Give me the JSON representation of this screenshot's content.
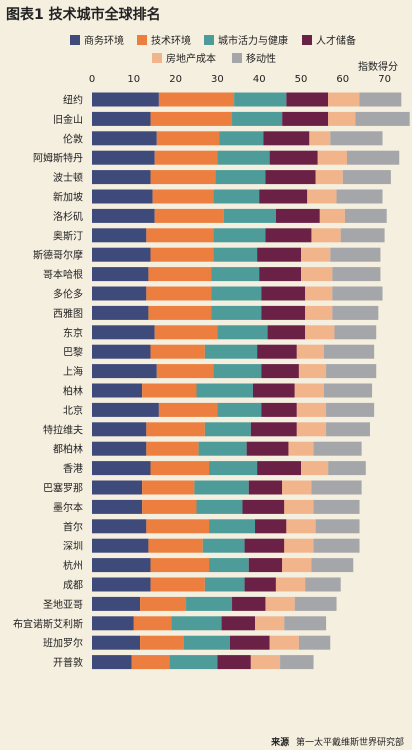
{
  "title_lead": "图表1",
  "title_text": "技术城市全球排名",
  "source_label": "来源",
  "source_text": "第一太平戴维斯世界研究部",
  "chart_data": {
    "type": "bar",
    "orientation": "horizontal",
    "stacked": true,
    "title": "图表1 技术城市全球排名",
    "xlabel": "指数得分",
    "xlim": [
      0,
      75
    ],
    "xticks": [
      0,
      10,
      20,
      30,
      40,
      50,
      60,
      70
    ],
    "legend_position": "top",
    "categories": [
      "纽约",
      "旧金山",
      "伦敦",
      "阿姆斯特丹",
      "波士顿",
      "新加坡",
      "洛杉矶",
      "奥斯汀",
      "斯德哥尔摩",
      "哥本哈根",
      "多伦多",
      "西雅图",
      "东京",
      "巴黎",
      "上海",
      "柏林",
      "北京",
      "特拉维夫",
      "都柏林",
      "香港",
      "巴塞罗那",
      "墨尔本",
      "首尔",
      "深圳",
      "杭州",
      "成都",
      "圣地亚哥",
      "布宜诺斯艾利斯",
      "班加罗尔",
      "开普敦"
    ],
    "series": [
      {
        "name": "商务环境",
        "color": "#3e4a7a",
        "values": [
          16,
          14,
          15.5,
          15,
          14,
          14.5,
          15,
          13,
          14,
          13.5,
          13,
          13.5,
          15,
          14,
          15.5,
          12,
          16,
          13,
          13,
          14,
          12,
          12,
          13,
          13.5,
          14,
          14,
          11.5,
          10,
          11.5,
          9.5
        ]
      },
      {
        "name": "技术环境",
        "color": "#ec7f3f",
        "values": [
          18,
          19.5,
          15,
          15,
          15.5,
          14.5,
          16.5,
          16,
          15,
          15,
          15.5,
          15,
          15,
          13,
          13.5,
          13,
          14,
          14,
          12.5,
          14,
          12.5,
          13,
          15,
          13,
          14,
          13,
          11,
          9,
          10.5,
          9
        ]
      },
      {
        "name": "城市活力与健康",
        "color": "#4d9c9a",
        "values": [
          12.5,
          12,
          10.5,
          12.5,
          12,
          11,
          12.5,
          12.5,
          10.5,
          11.5,
          12,
          12,
          12,
          12.5,
          11.5,
          13.5,
          10.5,
          11,
          11.5,
          11.5,
          13,
          11,
          11,
          10,
          9.5,
          9.5,
          11,
          12,
          11,
          11.5
        ]
      },
      {
        "name": "人才储备",
        "color": "#6b2145",
        "values": [
          10,
          11,
          11,
          11.5,
          12,
          11.5,
          10.5,
          11,
          10.5,
          10,
          10.5,
          10.5,
          9,
          9.5,
          9,
          10,
          8.5,
          11,
          10,
          10.5,
          8,
          10,
          7.5,
          9.5,
          8,
          7.5,
          8,
          8,
          9.5,
          8
        ]
      },
      {
        "name": "房地产成本",
        "color": "#f2b48a",
        "values": [
          7.5,
          6.5,
          5,
          7,
          6.5,
          7,
          6,
          7,
          7,
          7.5,
          6.5,
          6.5,
          7,
          6.5,
          6.5,
          7,
          7,
          7,
          6,
          6.5,
          7,
          7,
          7,
          7,
          7,
          7,
          7,
          7,
          7,
          7
        ]
      },
      {
        "name": "移动性",
        "color": "#a5a6a9",
        "values": [
          10,
          13,
          12.5,
          12.5,
          11.5,
          11,
          10,
          10.5,
          12,
          11.5,
          12,
          11,
          10,
          12,
          12,
          11.5,
          11.5,
          10.5,
          11.5,
          9,
          12,
          11,
          10.5,
          11,
          10,
          8.5,
          10,
          10,
          7.5,
          8
        ]
      }
    ]
  }
}
